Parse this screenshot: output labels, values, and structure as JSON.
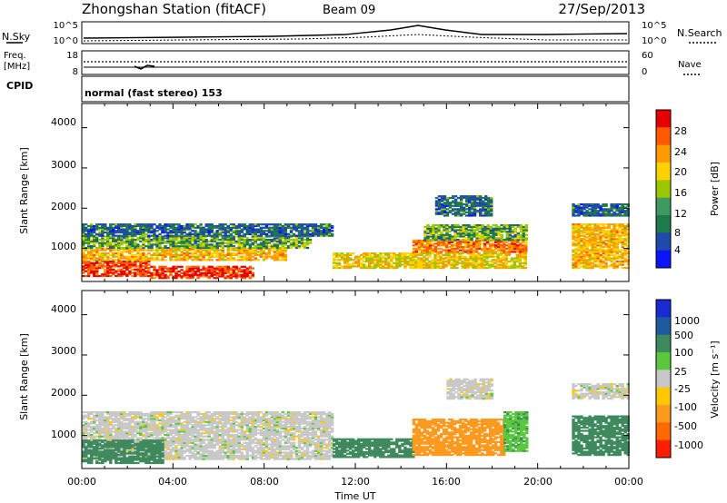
{
  "header": {
    "station": "Zhongshan Station (fitACF)",
    "beam": "Beam 09",
    "date": "27/Sep/2013"
  },
  "status_panels": {
    "nsky_label": "N.Sky",
    "nsky_ticks": [
      "10^5",
      "10^0"
    ],
    "nsearch_label": "N.Search",
    "nsearch_ticks": [
      "10^5",
      "10^0"
    ],
    "freq_label": "Freq.",
    "freq_unit": "[MHz]",
    "freq_ticks": [
      "18",
      "8"
    ],
    "nave_label": "Nave",
    "nave_ticks": [
      "60",
      "0"
    ],
    "cpid_label": "CPID",
    "cpid_value": "normal (fast stereo) 153"
  },
  "axes": {
    "ylabel": "Slant Range [km]",
    "yticks": [
      "4000",
      "3000",
      "2000",
      "1000"
    ],
    "xticks": [
      "00:00",
      "04:00",
      "08:00",
      "12:00",
      "16:00",
      "20:00",
      "00:00"
    ],
    "xlabel": "Time UT"
  },
  "power_colorbar": {
    "label": "Power [dB]",
    "ticks": [
      "28",
      "24",
      "20",
      "16",
      "12",
      "8",
      "4"
    ],
    "colors": [
      "#e60000",
      "#ff5a00",
      "#ff9a00",
      "#ffd200",
      "#9ac800",
      "#3e9a60",
      "#1e7a4a",
      "#1e4aaa",
      "#0a14ff"
    ]
  },
  "velocity_colorbar": {
    "label": "Velocity [m s⁻¹]",
    "ticks": [
      "1000",
      "500",
      "100",
      "25",
      "-25",
      "-100",
      "-500",
      "-1000"
    ],
    "colors": [
      "#1a2ad2",
      "#1e5aa0",
      "#3e8a5e",
      "#5ac83c",
      "#c8c8c8",
      "#ffc800",
      "#ff9a1e",
      "#ff6a00",
      "#ff1e00"
    ]
  },
  "chart_data": [
    {
      "type": "heatmap",
      "title": "Power",
      "xlabel": "Time UT",
      "ylabel": "Slant Range [km]",
      "xlim": [
        0,
        24
      ],
      "ylim": [
        180,
        4600
      ],
      "colorbar": "Power [dB]",
      "regions": [
        {
          "t0": 0.0,
          "t1": 3.0,
          "r0": 300,
          "r1": 700,
          "v": 28
        },
        {
          "t0": 3.0,
          "t1": 7.5,
          "r0": 250,
          "r1": 550,
          "v": 28
        },
        {
          "t0": 0.0,
          "t1": 9.0,
          "r0": 700,
          "r1": 1000,
          "v": 20
        },
        {
          "t0": 0.0,
          "t1": 10.0,
          "r0": 1000,
          "r1": 1300,
          "v": 12
        },
        {
          "t0": 0.0,
          "t1": 11.0,
          "r0": 1300,
          "r1": 1600,
          "v": 8
        },
        {
          "t0": 11.0,
          "t1": 19.5,
          "r0": 500,
          "r1": 900,
          "v": 18
        },
        {
          "t0": 14.5,
          "t1": 19.5,
          "r0": 900,
          "r1": 1200,
          "v": 24
        },
        {
          "t0": 15.0,
          "t1": 19.5,
          "r0": 1200,
          "r1": 1600,
          "v": 12
        },
        {
          "t0": 15.5,
          "t1": 18.0,
          "r0": 1800,
          "r1": 2300,
          "v": 8
        },
        {
          "t0": 21.5,
          "t1": 24.0,
          "r0": 500,
          "r1": 1600,
          "v": 20
        },
        {
          "t0": 21.5,
          "t1": 24.0,
          "r0": 1800,
          "r1": 2100,
          "v": 8
        }
      ]
    },
    {
      "type": "heatmap",
      "title": "Velocity",
      "xlabel": "Time UT",
      "ylabel": "Slant Range [km]",
      "xlim": [
        0,
        24
      ],
      "ylim": [
        180,
        4600
      ],
      "colorbar": "Velocity [m s⁻¹]",
      "regions": [
        {
          "t0": 0.0,
          "t1": 11.0,
          "r0": 400,
          "r1": 1600,
          "v": 0
        },
        {
          "t0": 0.0,
          "t1": 3.5,
          "r0": 300,
          "r1": 900,
          "v": 150
        },
        {
          "t0": 11.0,
          "t1": 14.5,
          "r0": 450,
          "r1": 900,
          "v": 150
        },
        {
          "t0": 14.5,
          "t1": 18.5,
          "r0": 500,
          "r1": 1400,
          "v": -150
        },
        {
          "t0": 18.5,
          "t1": 19.5,
          "r0": 600,
          "r1": 1600,
          "v": 80
        },
        {
          "t0": 21.5,
          "t1": 24.0,
          "r0": 500,
          "r1": 1500,
          "v": 150
        },
        {
          "t0": 16.0,
          "t1": 18.0,
          "r0": 1900,
          "r1": 2400,
          "v": 0
        },
        {
          "t0": 21.5,
          "t1": 24.0,
          "r0": 1900,
          "r1": 2300,
          "v": 0
        }
      ]
    }
  ]
}
